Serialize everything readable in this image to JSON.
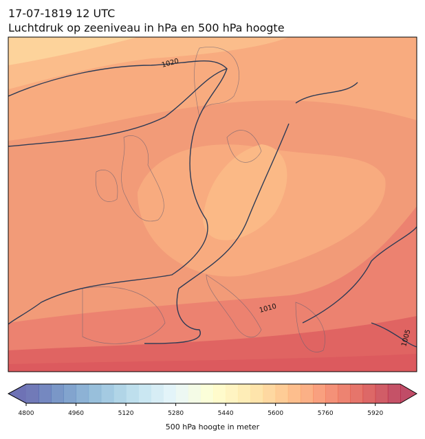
{
  "header": {
    "title": "17-07-1819 12 UTC",
    "subtitle": "Luchtdruk op zeeniveau in hPa en 500 hPa hoogte"
  },
  "map": {
    "contour_labels": [
      "1020",
      "1010",
      "1005"
    ]
  },
  "colorbar": {
    "label": "500 hPa hoogte in meter",
    "xlim": [
      4800,
      6000
    ],
    "step": 40,
    "xticks": [
      4800,
      4960,
      5120,
      5280,
      5440,
      5600,
      5760,
      5920
    ],
    "colormap": [
      "#313695",
      "#4575b4",
      "#74add1",
      "#abd9e9",
      "#e0f3f8",
      "#ffffbf",
      "#fee090",
      "#fdae61",
      "#f46d43",
      "#d73027",
      "#a50026"
    ],
    "alpha": 0.7
  }
}
